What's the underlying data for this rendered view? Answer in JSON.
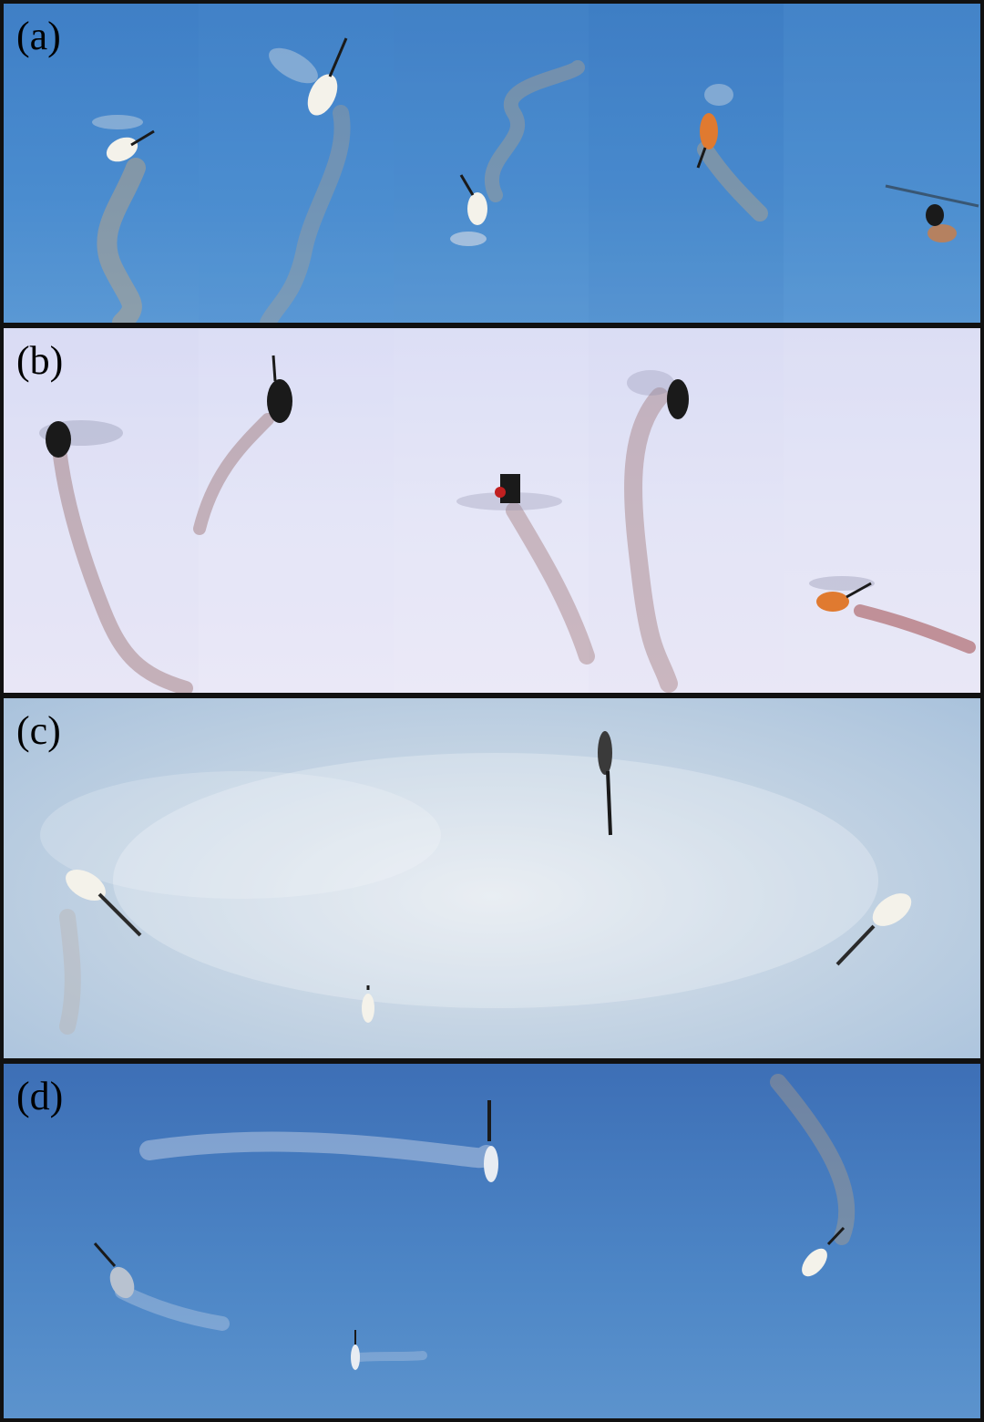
{
  "figure": {
    "panels": [
      {
        "id": "a",
        "label": "(a)",
        "frames": 5,
        "sky": "#4a8ccf"
      },
      {
        "id": "b",
        "label": "(b)",
        "frames": 5,
        "sky": "#e4e5f7"
      },
      {
        "id": "c",
        "label": "(c)",
        "frames": 1,
        "sky": "#c6d5e4"
      },
      {
        "id": "d",
        "label": "(d)",
        "frames": 1,
        "sky": "#4d86c6"
      }
    ]
  },
  "colors": {
    "smoke_a": "#c9a77a",
    "smoke_b": "#9a6f6f",
    "smoke_c": "#b8b2b0",
    "smoke_d": "#cfd8e8",
    "heli_dark": "#1a1a1a",
    "heli_light": "#f4f2ea",
    "heli_orange": "#e07a30"
  }
}
